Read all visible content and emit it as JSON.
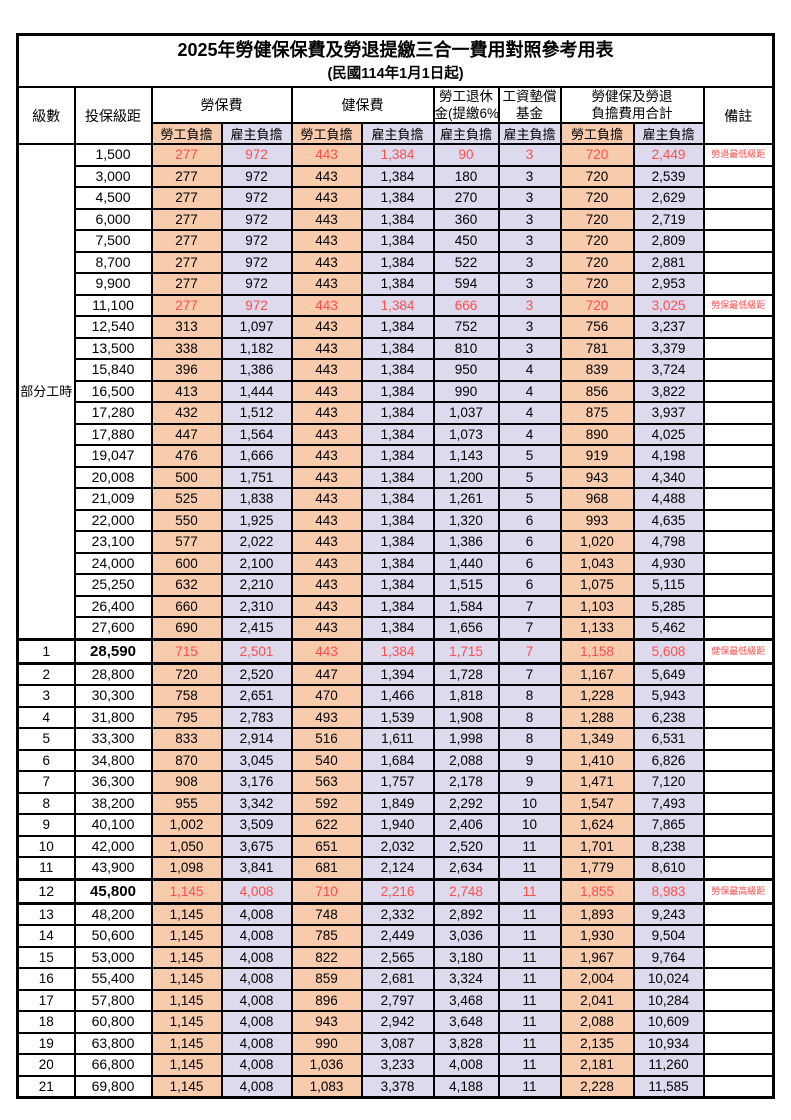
{
  "title": "2025年勞健保保費及勞退提繳三合一費用對照參考用表",
  "subtitle": "(民國114年1月1日起)",
  "colors": {
    "employee_bg": "#F8CBAD",
    "employer_bg": "#DDDAEE",
    "highlight_text": "#FF4E4E",
    "border": "#000000"
  },
  "header": {
    "level": "級數",
    "bracket": "投保級距",
    "labor_ins": "勞保費",
    "health_ins": "健保費",
    "pension_line1": "勞工退休",
    "pension_line2": "金(提繳6%)",
    "wage_fund_line1": "工資墊償",
    "wage_fund_line2": "基金",
    "total_line1": "勞健保及勞退",
    "total_line2": "負擔費用合計",
    "remark": "備註",
    "employee": "勞工負擔",
    "employer": "雇主負擔"
  },
  "part_time_label": "部分工時",
  "rows": [
    {
      "level": null,
      "bracket": "1,500",
      "values": [
        "277",
        "972",
        "443",
        "1,384",
        "90",
        "3",
        "720",
        "2,449"
      ],
      "remark": "勞退最低級距",
      "red": true,
      "thick": false
    },
    {
      "level": null,
      "bracket": "3,000",
      "values": [
        "277",
        "972",
        "443",
        "1,384",
        "180",
        "3",
        "720",
        "2,539"
      ],
      "remark": "",
      "red": false,
      "thick": false
    },
    {
      "level": null,
      "bracket": "4,500",
      "values": [
        "277",
        "972",
        "443",
        "1,384",
        "270",
        "3",
        "720",
        "2,629"
      ],
      "remark": "",
      "red": false,
      "thick": false
    },
    {
      "level": null,
      "bracket": "6,000",
      "values": [
        "277",
        "972",
        "443",
        "1,384",
        "360",
        "3",
        "720",
        "2,719"
      ],
      "remark": "",
      "red": false,
      "thick": false
    },
    {
      "level": null,
      "bracket": "7,500",
      "values": [
        "277",
        "972",
        "443",
        "1,384",
        "450",
        "3",
        "720",
        "2,809"
      ],
      "remark": "",
      "red": false,
      "thick": false
    },
    {
      "level": null,
      "bracket": "8,700",
      "values": [
        "277",
        "972",
        "443",
        "1,384",
        "522",
        "3",
        "720",
        "2,881"
      ],
      "remark": "",
      "red": false,
      "thick": false
    },
    {
      "level": null,
      "bracket": "9,900",
      "values": [
        "277",
        "972",
        "443",
        "1,384",
        "594",
        "3",
        "720",
        "2,953"
      ],
      "remark": "",
      "red": false,
      "thick": false
    },
    {
      "level": null,
      "bracket": "11,100",
      "values": [
        "277",
        "972",
        "443",
        "1,384",
        "666",
        "3",
        "720",
        "3,025"
      ],
      "remark": "勞保最低級距",
      "red": true,
      "thick": false
    },
    {
      "level": null,
      "bracket": "12,540",
      "values": [
        "313",
        "1,097",
        "443",
        "1,384",
        "752",
        "3",
        "756",
        "3,237"
      ],
      "remark": "",
      "red": false,
      "thick": false
    },
    {
      "level": null,
      "bracket": "13,500",
      "values": [
        "338",
        "1,182",
        "443",
        "1,384",
        "810",
        "3",
        "781",
        "3,379"
      ],
      "remark": "",
      "red": false,
      "thick": false
    },
    {
      "level": null,
      "bracket": "15,840",
      "values": [
        "396",
        "1,386",
        "443",
        "1,384",
        "950",
        "4",
        "839",
        "3,724"
      ],
      "remark": "",
      "red": false,
      "thick": false
    },
    {
      "level": null,
      "bracket": "16,500",
      "values": [
        "413",
        "1,444",
        "443",
        "1,384",
        "990",
        "4",
        "856",
        "3,822"
      ],
      "remark": "",
      "red": false,
      "thick": false
    },
    {
      "level": null,
      "bracket": "17,280",
      "values": [
        "432",
        "1,512",
        "443",
        "1,384",
        "1,037",
        "4",
        "875",
        "3,937"
      ],
      "remark": "",
      "red": false,
      "thick": false
    },
    {
      "level": null,
      "bracket": "17,880",
      "values": [
        "447",
        "1,564",
        "443",
        "1,384",
        "1,073",
        "4",
        "890",
        "4,025"
      ],
      "remark": "",
      "red": false,
      "thick": false
    },
    {
      "level": null,
      "bracket": "19,047",
      "values": [
        "476",
        "1,666",
        "443",
        "1,384",
        "1,143",
        "5",
        "919",
        "4,198"
      ],
      "remark": "",
      "red": false,
      "thick": false
    },
    {
      "level": null,
      "bracket": "20,008",
      "values": [
        "500",
        "1,751",
        "443",
        "1,384",
        "1,200",
        "5",
        "943",
        "4,340"
      ],
      "remark": "",
      "red": false,
      "thick": false
    },
    {
      "level": null,
      "bracket": "21,009",
      "values": [
        "525",
        "1,838",
        "443",
        "1,384",
        "1,261",
        "5",
        "968",
        "4,488"
      ],
      "remark": "",
      "red": false,
      "thick": false
    },
    {
      "level": null,
      "bracket": "22,000",
      "values": [
        "550",
        "1,925",
        "443",
        "1,384",
        "1,320",
        "6",
        "993",
        "4,635"
      ],
      "remark": "",
      "red": false,
      "thick": false
    },
    {
      "level": null,
      "bracket": "23,100",
      "values": [
        "577",
        "2,022",
        "443",
        "1,384",
        "1,386",
        "6",
        "1,020",
        "4,798"
      ],
      "remark": "",
      "red": false,
      "thick": false
    },
    {
      "level": null,
      "bracket": "24,000",
      "values": [
        "600",
        "2,100",
        "443",
        "1,384",
        "1,440",
        "6",
        "1,043",
        "4,930"
      ],
      "remark": "",
      "red": false,
      "thick": false
    },
    {
      "level": null,
      "bracket": "25,250",
      "values": [
        "632",
        "2,210",
        "443",
        "1,384",
        "1,515",
        "6",
        "1,075",
        "5,115"
      ],
      "remark": "",
      "red": false,
      "thick": false
    },
    {
      "level": null,
      "bracket": "26,400",
      "values": [
        "660",
        "2,310",
        "443",
        "1,384",
        "1,584",
        "7",
        "1,103",
        "5,285"
      ],
      "remark": "",
      "red": false,
      "thick": false
    },
    {
      "level": null,
      "bracket": "27,600",
      "values": [
        "690",
        "2,415",
        "443",
        "1,384",
        "1,656",
        "7",
        "1,133",
        "5,462"
      ],
      "remark": "",
      "red": false,
      "thick": false
    },
    {
      "level": "1",
      "bracket": "28,590",
      "values": [
        "715",
        "2,501",
        "443",
        "1,384",
        "1,715",
        "7",
        "1,158",
        "5,608"
      ],
      "remark": "健保最低級距",
      "red": true,
      "thick": true
    },
    {
      "level": "2",
      "bracket": "28,800",
      "values": [
        "720",
        "2,520",
        "447",
        "1,394",
        "1,728",
        "7",
        "1,167",
        "5,649"
      ],
      "remark": "",
      "red": false,
      "thick": false
    },
    {
      "level": "3",
      "bracket": "30,300",
      "values": [
        "758",
        "2,651",
        "470",
        "1,466",
        "1,818",
        "8",
        "1,228",
        "5,943"
      ],
      "remark": "",
      "red": false,
      "thick": false
    },
    {
      "level": "4",
      "bracket": "31,800",
      "values": [
        "795",
        "2,783",
        "493",
        "1,539",
        "1,908",
        "8",
        "1,288",
        "6,238"
      ],
      "remark": "",
      "red": false,
      "thick": false
    },
    {
      "level": "5",
      "bracket": "33,300",
      "values": [
        "833",
        "2,914",
        "516",
        "1,611",
        "1,998",
        "8",
        "1,349",
        "6,531"
      ],
      "remark": "",
      "red": false,
      "thick": false
    },
    {
      "level": "6",
      "bracket": "34,800",
      "values": [
        "870",
        "3,045",
        "540",
        "1,684",
        "2,088",
        "9",
        "1,410",
        "6,826"
      ],
      "remark": "",
      "red": false,
      "thick": false
    },
    {
      "level": "7",
      "bracket": "36,300",
      "values": [
        "908",
        "3,176",
        "563",
        "1,757",
        "2,178",
        "9",
        "1,471",
        "7,120"
      ],
      "remark": "",
      "red": false,
      "thick": false
    },
    {
      "level": "8",
      "bracket": "38,200",
      "values": [
        "955",
        "3,342",
        "592",
        "1,849",
        "2,292",
        "10",
        "1,547",
        "7,493"
      ],
      "remark": "",
      "red": false,
      "thick": false
    },
    {
      "level": "9",
      "bracket": "40,100",
      "values": [
        "1,002",
        "3,509",
        "622",
        "1,940",
        "2,406",
        "10",
        "1,624",
        "7,865"
      ],
      "remark": "",
      "red": false,
      "thick": false
    },
    {
      "level": "10",
      "bracket": "42,000",
      "values": [
        "1,050",
        "3,675",
        "651",
        "2,032",
        "2,520",
        "11",
        "1,701",
        "8,238"
      ],
      "remark": "",
      "red": false,
      "thick": false
    },
    {
      "level": "11",
      "bracket": "43,900",
      "values": [
        "1,098",
        "3,841",
        "681",
        "2,124",
        "2,634",
        "11",
        "1,779",
        "8,610"
      ],
      "remark": "",
      "red": false,
      "thick": false
    },
    {
      "level": "12",
      "bracket": "45,800",
      "values": [
        "1,145",
        "4,008",
        "710",
        "2,216",
        "2,748",
        "11",
        "1,855",
        "8,983"
      ],
      "remark": "勞保最高級距",
      "red": true,
      "thick": true
    },
    {
      "level": "13",
      "bracket": "48,200",
      "values": [
        "1,145",
        "4,008",
        "748",
        "2,332",
        "2,892",
        "11",
        "1,893",
        "9,243"
      ],
      "remark": "",
      "red": false,
      "thick": false
    },
    {
      "level": "14",
      "bracket": "50,600",
      "values": [
        "1,145",
        "4,008",
        "785",
        "2,449",
        "3,036",
        "11",
        "1,930",
        "9,504"
      ],
      "remark": "",
      "red": false,
      "thick": false
    },
    {
      "level": "15",
      "bracket": "53,000",
      "values": [
        "1,145",
        "4,008",
        "822",
        "2,565",
        "3,180",
        "11",
        "1,967",
        "9,764"
      ],
      "remark": "",
      "red": false,
      "thick": false
    },
    {
      "level": "16",
      "bracket": "55,400",
      "values": [
        "1,145",
        "4,008",
        "859",
        "2,681",
        "3,324",
        "11",
        "2,004",
        "10,024"
      ],
      "remark": "",
      "red": false,
      "thick": false
    },
    {
      "level": "17",
      "bracket": "57,800",
      "values": [
        "1,145",
        "4,008",
        "896",
        "2,797",
        "3,468",
        "11",
        "2,041",
        "10,284"
      ],
      "remark": "",
      "red": false,
      "thick": false
    },
    {
      "level": "18",
      "bracket": "60,800",
      "values": [
        "1,145",
        "4,008",
        "943",
        "2,942",
        "3,648",
        "11",
        "2,088",
        "10,609"
      ],
      "remark": "",
      "red": false,
      "thick": false
    },
    {
      "level": "19",
      "bracket": "63,800",
      "values": [
        "1,145",
        "4,008",
        "990",
        "3,087",
        "3,828",
        "11",
        "2,135",
        "10,934"
      ],
      "remark": "",
      "red": false,
      "thick": false
    },
    {
      "level": "20",
      "bracket": "66,800",
      "values": [
        "1,145",
        "4,008",
        "1,036",
        "3,233",
        "4,008",
        "11",
        "2,181",
        "11,260"
      ],
      "remark": "",
      "red": false,
      "thick": false
    },
    {
      "level": "21",
      "bracket": "69,800",
      "values": [
        "1,145",
        "4,008",
        "1,083",
        "3,378",
        "4,188",
        "11",
        "2,228",
        "11,585"
      ],
      "remark": "",
      "red": false,
      "thick": false
    }
  ]
}
